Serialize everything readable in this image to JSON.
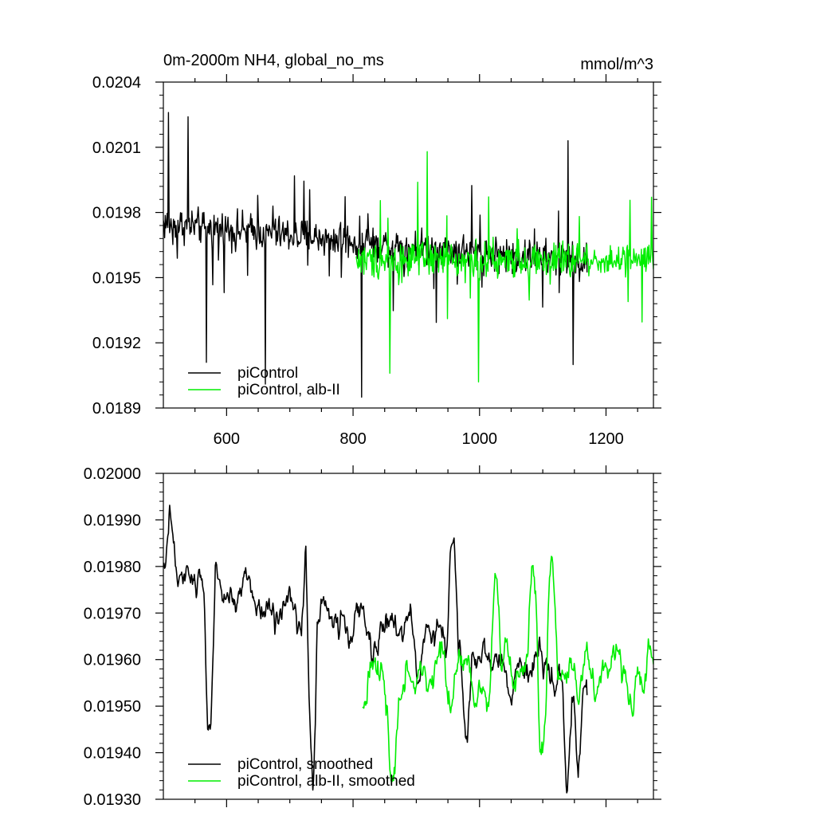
{
  "figure": {
    "title": "0m-2000m NH4, global_no_ms",
    "units": "mmol/m^3"
  },
  "colors": {
    "black": "#000000",
    "green": "#00ee00",
    "background": "#ffffff"
  },
  "chart_data": [
    {
      "type": "line",
      "id": "raw",
      "title": "0m-2000m NH4, global_no_ms",
      "units": "mmol/m^3",
      "xlabel": "",
      "ylabel": "",
      "xlim": [
        500,
        1275
      ],
      "ylim": [
        0.0189,
        0.0204
      ],
      "x_ticks": [
        600,
        800,
        1000,
        1200
      ],
      "x_tick_labels": [
        "600",
        "800",
        "1000",
        "1200"
      ],
      "y_ticks": [
        0.0189,
        0.0192,
        0.0195,
        0.0198,
        0.0201,
        0.0204
      ],
      "y_tick_labels": [
        "0.0189",
        "0.0192",
        "0.0195",
        "0.0198",
        "0.0201",
        "0.0204"
      ],
      "grid": false,
      "legend": "bottom-left",
      "series": [
        {
          "name": "piControl",
          "color": "#000000",
          "x_start": 500,
          "x_end": 1170,
          "n": 670,
          "trend": [
            0.01975,
            0.01957
          ],
          "amp": 0.00012,
          "spikes": 0.00028,
          "highlights": [
            [
              508,
              0.02026
            ],
            [
              539,
              0.02024
            ],
            [
              568,
              0.01911
            ],
            [
              661,
              0.01901
            ],
            [
              813,
              0.01895
            ],
            [
              1140,
              0.02013
            ],
            [
              1148,
              0.0191
            ]
          ]
        },
        {
          "name": "piControl, alb-II",
          "color": "#00ee00",
          "x_start": 805,
          "x_end": 1275,
          "n": 470,
          "trend": [
            0.01958,
            0.01958
          ],
          "amp": 0.00012,
          "spikes": 0.0003,
          "highlights": [
            [
              917,
              0.02008
            ],
            [
              998,
              0.01902
            ],
            [
              858,
              0.01906
            ],
            [
              1272,
              0.01987
            ]
          ]
        }
      ]
    },
    {
      "type": "line",
      "id": "smoothed",
      "title": "",
      "xlabel": "",
      "ylabel": "",
      "xlim": [
        500,
        1275
      ],
      "ylim": [
        0.0193,
        0.02
      ],
      "x_ticks": [
        600,
        800,
        1000,
        1200
      ],
      "x_tick_labels": [],
      "y_ticks": [
        0.0193,
        0.0194,
        0.0195,
        0.0196,
        0.0197,
        0.0198,
        0.0199,
        0.02
      ],
      "y_tick_labels": [
        "0.01930",
        "0.01940",
        "0.01950",
        "0.01960",
        "0.01970",
        "0.01980",
        "0.01990",
        "0.02000"
      ],
      "grid": false,
      "legend": "bottom-left",
      "series": [
        {
          "name": "piControl, smoothed",
          "color": "#000000",
          "x_start": 500,
          "x_end": 1170,
          "n": 670,
          "trend": [
            0.01977,
            0.01955
          ],
          "amp": 9e-05,
          "spikes": 0,
          "highlights": [
            [
              512,
              0.0199
            ],
            [
              727,
              0.01983
            ],
            [
              548,
              0.01977
            ],
            [
              573,
              0.01946
            ],
            [
              734,
              0.01939
            ],
            [
              958,
              0.01985
            ],
            [
              979,
              0.01943
            ],
            [
              1140,
              0.01935
            ],
            [
              1155,
              0.01937
            ]
          ]
        },
        {
          "name": "piControl, alb-II, smoothed",
          "color": "#00ee00",
          "x_start": 815,
          "x_end": 1275,
          "n": 460,
          "trend": [
            0.01956,
            0.01958
          ],
          "amp": 0.0001,
          "spikes": 0,
          "highlights": [
            [
              1115,
              0.01982
            ],
            [
              1025,
              0.01978
            ],
            [
              1086,
              0.01978
            ],
            [
              863,
              0.01935
            ],
            [
              1100,
              0.0194
            ]
          ]
        }
      ]
    }
  ]
}
